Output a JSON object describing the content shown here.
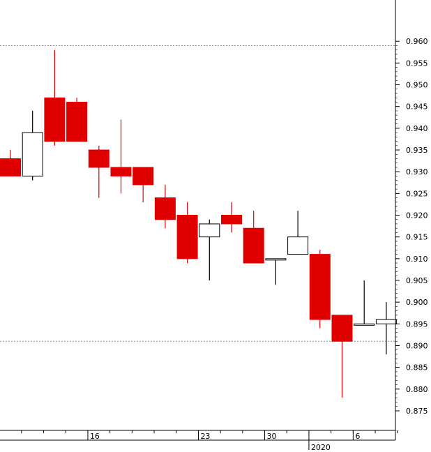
{
  "chart_data": {
    "type": "candlestick",
    "title": "",
    "xlabel": "",
    "ylabel": "",
    "ylim": [
      0.8705,
      0.9695
    ],
    "y_ticks": [
      "0.875",
      "0.880",
      "0.885",
      "0.890",
      "0.895",
      "0.900",
      "0.905",
      "0.910",
      "0.915",
      "0.920",
      "0.925",
      "0.930",
      "0.935",
      "0.940",
      "0.945",
      "0.950",
      "0.955",
      "0.960"
    ],
    "x_labels": [
      {
        "label": "16",
        "index": 3.5
      },
      {
        "label": "23",
        "index": 8.5
      },
      {
        "label": "30",
        "index": 11.5
      },
      {
        "label": "2020",
        "index": 13.5
      },
      {
        "label": "6",
        "index": 15.5
      }
    ],
    "reference_lines": [
      0.959,
      0.891
    ],
    "colors": {
      "up_fill": "#ffffff",
      "down_fill": "#e00000",
      "outline": "#000000",
      "ref_line": "#5fa090"
    },
    "candles": [
      {
        "o": 0.933,
        "h": 0.935,
        "l": 0.929,
        "c": 0.929
      },
      {
        "o": 0.929,
        "h": 0.944,
        "l": 0.928,
        "c": 0.939
      },
      {
        "o": 0.947,
        "h": 0.958,
        "l": 0.936,
        "c": 0.937
      },
      {
        "o": 0.946,
        "h": 0.947,
        "l": 0.937,
        "c": 0.937
      },
      {
        "o": 0.935,
        "h": 0.936,
        "l": 0.924,
        "c": 0.931
      },
      {
        "o": 0.931,
        "h": 0.942,
        "l": 0.925,
        "c": 0.929
      },
      {
        "o": 0.931,
        "h": 0.931,
        "l": 0.923,
        "c": 0.927
      },
      {
        "o": 0.924,
        "h": 0.927,
        "l": 0.917,
        "c": 0.919
      },
      {
        "o": 0.92,
        "h": 0.923,
        "l": 0.909,
        "c": 0.91
      },
      {
        "o": 0.915,
        "h": 0.919,
        "l": 0.905,
        "c": 0.918
      },
      {
        "o": 0.92,
        "h": 0.923,
        "l": 0.916,
        "c": 0.918
      },
      {
        "o": 0.917,
        "h": 0.921,
        "l": 0.909,
        "c": 0.909
      },
      {
        "o": 0.91,
        "h": 0.91,
        "l": 0.904,
        "c": 0.91
      },
      {
        "o": 0.911,
        "h": 0.921,
        "l": 0.911,
        "c": 0.915
      },
      {
        "o": 0.911,
        "h": 0.912,
        "l": 0.894,
        "c": 0.896
      },
      {
        "o": 0.897,
        "h": 0.897,
        "l": 0.878,
        "c": 0.891
      },
      {
        "o": 0.895,
        "h": 0.905,
        "l": 0.895,
        "c": 0.895
      },
      {
        "o": 0.895,
        "h": 0.9,
        "l": 0.888,
        "c": 0.896
      }
    ]
  }
}
